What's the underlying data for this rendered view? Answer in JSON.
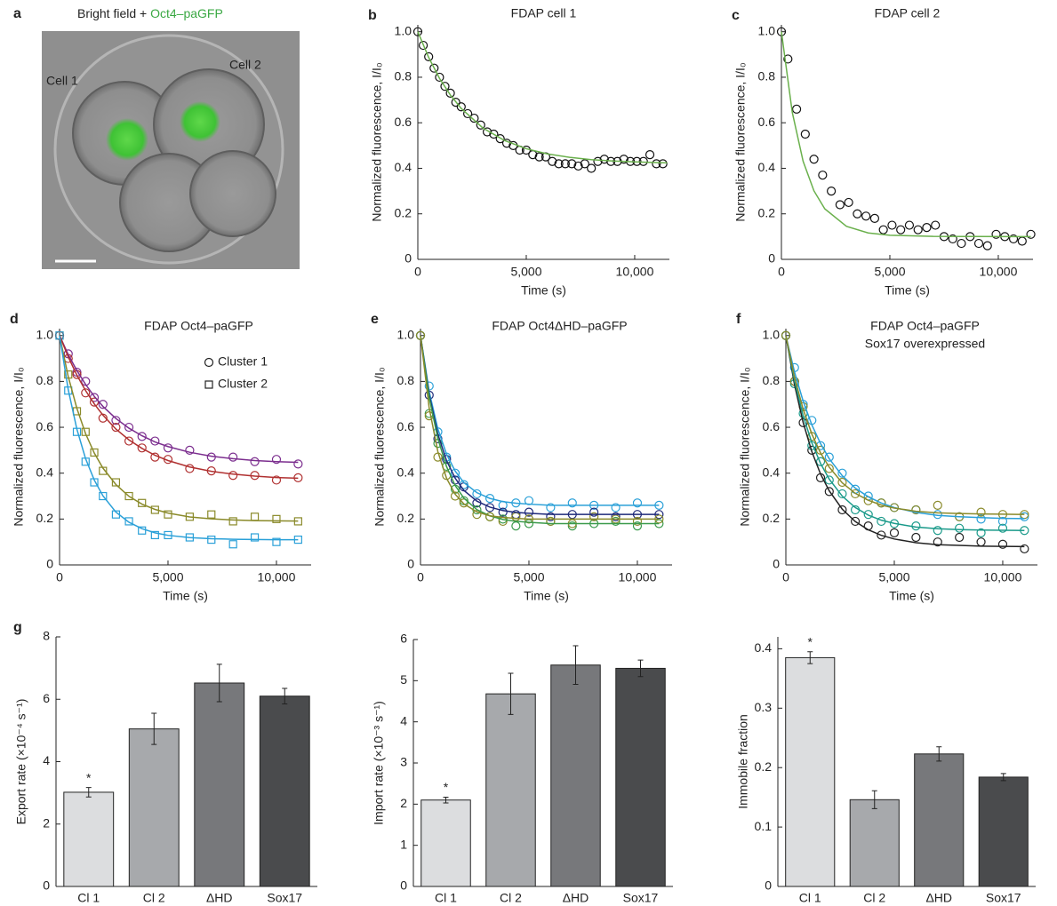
{
  "chart_data": [
    {
      "type": "image",
      "label": "a",
      "title": "Bright field + ",
      "title_highlight": "Oct4–paGFP",
      "annotations": [
        "Cell 1",
        "Cell 2"
      ]
    },
    {
      "type": "scatter",
      "label": "b",
      "title": "FDAP cell 1",
      "xlabel": "Time (s)",
      "ylabel": "Normalized fluorescence, I/I₀",
      "xlim": [
        0,
        11600
      ],
      "ylim": [
        0,
        1.03
      ],
      "xticks": [
        0,
        {
          "value": 5000,
          "label": "5,000"
        },
        {
          "value": 10000,
          "label": "10,000"
        }
      ],
      "yticks": [
        0,
        0.2,
        0.4,
        0.6,
        0.8,
        {
          "value": 1,
          "label": "1.0"
        }
      ],
      "x": [
        0,
        250,
        500,
        750,
        1000,
        1250,
        1500,
        1750,
        2000,
        2300,
        2600,
        2900,
        3200,
        3500,
        3800,
        4100,
        4400,
        4700,
        5000,
        5300,
        5600,
        5900,
        6200,
        6500,
        6800,
        7100,
        7400,
        7700,
        8000,
        8300,
        8600,
        8900,
        9200,
        9500,
        9800,
        10100,
        10400,
        10700,
        11000,
        11300
      ],
      "series": [
        {
          "marker": "circle",
          "color": "#111111",
          "values": [
            1.0,
            0.94,
            0.89,
            0.84,
            0.8,
            0.76,
            0.73,
            0.69,
            0.67,
            0.64,
            0.62,
            0.59,
            0.56,
            0.55,
            0.53,
            0.51,
            0.5,
            0.48,
            0.48,
            0.46,
            0.45,
            0.45,
            0.43,
            0.42,
            0.42,
            0.42,
            0.41,
            0.42,
            0.4,
            0.43,
            0.44,
            0.43,
            0.43,
            0.44,
            0.43,
            0.43,
            0.43,
            0.46,
            0.42,
            0.42
          ]
        }
      ],
      "fit": {
        "color": "#6ab04c",
        "x": [
          0,
          500,
          1000,
          1500,
          2000,
          3000,
          4000,
          5000,
          6000,
          7000,
          8000,
          9000,
          10000,
          11500
        ],
        "values": [
          1.0,
          0.887,
          0.795,
          0.722,
          0.663,
          0.577,
          0.522,
          0.486,
          0.463,
          0.448,
          0.438,
          0.432,
          0.428,
          0.424
        ]
      }
    },
    {
      "type": "scatter",
      "label": "c",
      "title": "FDAP cell 2",
      "xlabel": "Time (s)",
      "ylabel": "Normalized fluorescence, I/I₀",
      "xlim": [
        0,
        11600
      ],
      "ylim": [
        0,
        1.03
      ],
      "xticks": [
        0,
        {
          "value": 5000,
          "label": "5,000"
        },
        {
          "value": 10000,
          "label": "10,000"
        }
      ],
      "yticks": [
        0,
        0.2,
        0.4,
        0.6,
        0.8,
        {
          "value": 1,
          "label": "1.0"
        }
      ],
      "x": [
        0,
        300,
        700,
        1100,
        1500,
        1900,
        2300,
        2700,
        3100,
        3500,
        3900,
        4300,
        4700,
        5100,
        5500,
        5900,
        6300,
        6700,
        7100,
        7500,
        7900,
        8300,
        8700,
        9100,
        9500,
        9900,
        10300,
        10700,
        11100,
        11500
      ],
      "series": [
        {
          "marker": "circle",
          "color": "#111111",
          "values": [
            1.0,
            0.88,
            0.66,
            0.55,
            0.44,
            0.37,
            0.3,
            0.24,
            0.25,
            0.2,
            0.19,
            0.18,
            0.13,
            0.15,
            0.13,
            0.15,
            0.13,
            0.14,
            0.15,
            0.1,
            0.09,
            0.07,
            0.1,
            0.07,
            0.06,
            0.11,
            0.1,
            0.09,
            0.08,
            0.11
          ]
        }
      ],
      "fit": {
        "color": "#6ab04c",
        "x": [
          0,
          500,
          1000,
          1500,
          2000,
          3000,
          4000,
          5000,
          7000,
          11500
        ],
        "values": [
          1.0,
          0.646,
          0.431,
          0.301,
          0.222,
          0.145,
          0.116,
          0.106,
          0.101,
          0.1
        ]
      }
    },
    {
      "type": "scatter",
      "label": "d",
      "title": "FDAP Oct4–paGFP",
      "xlabel": "Time (s)",
      "ylabel": "Normalized fluorescence, I/I₀",
      "xlim": [
        0,
        11600
      ],
      "ylim": [
        0,
        1.03
      ],
      "xticks": [
        0,
        {
          "value": 5000,
          "label": "5,000"
        },
        {
          "value": 10000,
          "label": "10,000"
        }
      ],
      "yticks": [
        0,
        0.2,
        0.4,
        0.6,
        0.8,
        {
          "value": 1,
          "label": "1.0"
        }
      ],
      "legend": [
        {
          "label": "Cluster 1",
          "marker": "circle"
        },
        {
          "label": "Cluster 2",
          "marker": "square"
        }
      ],
      "x": [
        0,
        400,
        800,
        1200,
        1600,
        2000,
        2600,
        3200,
        3800,
        4400,
        5000,
        6000,
        7000,
        8000,
        9000,
        10000,
        11000
      ],
      "series": [
        {
          "marker": "circle",
          "color": "#7b2d8e",
          "values": [
            1.0,
            0.92,
            0.84,
            0.8,
            0.73,
            0.7,
            0.63,
            0.6,
            0.56,
            0.54,
            0.51,
            0.5,
            0.47,
            0.47,
            0.45,
            0.46,
            0.44
          ],
          "fit": [
            1.0,
            0.917,
            0.847,
            0.787,
            0.735,
            0.691,
            0.638,
            0.596,
            0.563,
            0.536,
            0.516,
            0.491,
            0.474,
            0.463,
            0.455,
            0.45,
            0.447
          ]
        },
        {
          "marker": "circle",
          "color": "#b03030",
          "values": [
            1.0,
            0.9,
            0.83,
            0.75,
            0.71,
            0.64,
            0.6,
            0.54,
            0.51,
            0.47,
            0.46,
            0.42,
            0.41,
            0.39,
            0.39,
            0.37,
            0.38
          ],
          "fit": [
            1.0,
            0.907,
            0.827,
            0.76,
            0.702,
            0.653,
            0.592,
            0.545,
            0.508,
            0.478,
            0.455,
            0.427,
            0.408,
            0.396,
            0.387,
            0.381,
            0.378
          ]
        },
        {
          "marker": "square",
          "color": "#8a8a2a",
          "values": [
            1.0,
            0.83,
            0.67,
            0.58,
            0.49,
            0.41,
            0.36,
            0.3,
            0.27,
            0.24,
            0.22,
            0.21,
            0.22,
            0.19,
            0.21,
            0.2,
            0.19
          ],
          "fit": [
            1.0,
            0.821,
            0.682,
            0.572,
            0.488,
            0.422,
            0.35,
            0.299,
            0.265,
            0.242,
            0.226,
            0.209,
            0.201,
            0.196,
            0.193,
            0.192,
            0.191
          ]
        },
        {
          "marker": "square",
          "color": "#2aa0d8",
          "values": [
            1.0,
            0.76,
            0.58,
            0.45,
            0.36,
            0.3,
            0.22,
            0.19,
            0.15,
            0.13,
            0.13,
            0.12,
            0.11,
            0.09,
            0.12,
            0.1,
            0.11
          ],
          "fit": [
            1.0,
            0.764,
            0.591,
            0.463,
            0.37,
            0.301,
            0.23,
            0.186,
            0.158,
            0.14,
            0.129,
            0.119,
            0.114,
            0.112,
            0.111,
            0.11,
            0.11
          ]
        }
      ]
    },
    {
      "type": "scatter",
      "label": "e",
      "title": "FDAP Oct4ΔHD–paGFP",
      "xlabel": "Time (s)",
      "ylabel": "Normalized fluorescence, I/I₀",
      "xlim": [
        0,
        11600
      ],
      "ylim": [
        0,
        1.03
      ],
      "xticks": [
        0,
        {
          "value": 5000,
          "label": "5,000"
        },
        {
          "value": 10000,
          "label": "10,000"
        }
      ],
      "yticks": [
        0,
        0.2,
        0.4,
        0.6,
        0.8,
        {
          "value": 1,
          "label": "1.0"
        }
      ],
      "x": [
        0,
        400,
        800,
        1200,
        1600,
        2000,
        2600,
        3200,
        3800,
        4400,
        5000,
        6000,
        7000,
        8000,
        9000,
        10000,
        11000
      ],
      "series": [
        {
          "marker": "circle",
          "color": "#2aa0d8",
          "values": [
            1.0,
            0.78,
            0.58,
            0.47,
            0.4,
            0.35,
            0.31,
            0.29,
            0.26,
            0.27,
            0.28,
            0.25,
            0.27,
            0.26,
            0.25,
            0.27,
            0.26
          ],
          "fit": [
            1.0,
            0.756,
            0.593,
            0.483,
            0.409,
            0.359,
            0.315,
            0.29,
            0.276,
            0.269,
            0.265,
            0.26,
            0.26,
            0.26,
            0.26,
            0.26,
            0.26
          ]
        },
        {
          "marker": "circle",
          "color": "#1f2a7a",
          "values": [
            1.0,
            0.74,
            0.55,
            0.46,
            0.37,
            0.34,
            0.27,
            0.25,
            0.23,
            0.22,
            0.23,
            0.21,
            0.22,
            0.23,
            0.21,
            0.22,
            0.22
          ],
          "fit": [
            1.0,
            0.743,
            0.57,
            0.455,
            0.378,
            0.325,
            0.278,
            0.252,
            0.237,
            0.229,
            0.225,
            0.22,
            0.22,
            0.22,
            0.22,
            0.22,
            0.22
          ]
        },
        {
          "marker": "circle",
          "color": "#3a9a4a",
          "values": [
            1.0,
            0.66,
            0.53,
            0.43,
            0.33,
            0.28,
            0.24,
            0.21,
            0.2,
            0.17,
            0.18,
            0.19,
            0.17,
            0.18,
            0.19,
            0.17,
            0.18
          ],
          "fit": [
            1.0,
            0.73,
            0.551,
            0.429,
            0.346,
            0.291,
            0.241,
            0.214,
            0.198,
            0.19,
            0.186,
            0.18,
            0.18,
            0.18,
            0.18,
            0.18,
            0.18
          ]
        },
        {
          "marker": "circle",
          "color": "#8a8a2a",
          "values": [
            1.0,
            0.65,
            0.47,
            0.39,
            0.3,
            0.27,
            0.22,
            0.21,
            0.19,
            0.21,
            0.2,
            0.19,
            0.18,
            0.21,
            0.2,
            0.19,
            0.2
          ],
          "fit": [
            1.0,
            0.685,
            0.494,
            0.378,
            0.308,
            0.266,
            0.231,
            0.214,
            0.207,
            0.203,
            0.2,
            0.2,
            0.2,
            0.2,
            0.2,
            0.2,
            0.2
          ]
        }
      ]
    },
    {
      "type": "scatter",
      "label": "f",
      "title": "FDAP Oct4–paGFP",
      "subtitle": "Sox17 overexpressed",
      "xlabel": "Time (s)",
      "ylabel": "Normalized fluorescence, I/I₀",
      "xlim": [
        0,
        11600
      ],
      "ylim": [
        0,
        1.03
      ],
      "xticks": [
        0,
        {
          "value": 5000,
          "label": "5,000"
        },
        {
          "value": 10000,
          "label": "10,000"
        }
      ],
      "yticks": [
        0,
        0.2,
        0.4,
        0.6,
        0.8,
        {
          "value": 1,
          "label": "1.0"
        }
      ],
      "x": [
        0,
        400,
        800,
        1200,
        1600,
        2000,
        2600,
        3200,
        3800,
        4400,
        5000,
        6000,
        7000,
        8000,
        9000,
        10000,
        11000
      ],
      "series": [
        {
          "marker": "circle",
          "color": "#2aa0d8",
          "values": [
            1.0,
            0.86,
            0.7,
            0.63,
            0.52,
            0.47,
            0.4,
            0.33,
            0.3,
            0.27,
            0.25,
            0.24,
            0.22,
            0.21,
            0.2,
            0.19,
            0.21
          ],
          "fit": [
            1.0,
            0.841,
            0.713,
            0.61,
            0.529,
            0.463,
            0.389,
            0.335,
            0.297,
            0.27,
            0.25,
            0.229,
            0.216,
            0.21,
            0.206,
            0.203,
            0.202
          ]
        },
        {
          "marker": "circle",
          "color": "#222222",
          "values": [
            1.0,
            0.8,
            0.62,
            0.5,
            0.38,
            0.32,
            0.24,
            0.19,
            0.17,
            0.13,
            0.14,
            0.12,
            0.1,
            0.12,
            0.1,
            0.09,
            0.07
          ],
          "fit": [
            1.0,
            0.785,
            0.62,
            0.493,
            0.396,
            0.323,
            0.243,
            0.189,
            0.153,
            0.129,
            0.113,
            0.097,
            0.088,
            0.085,
            0.082,
            0.081,
            0.08
          ]
        },
        {
          "marker": "circle",
          "color": "#1a9a8a",
          "values": [
            1.0,
            0.79,
            0.66,
            0.52,
            0.45,
            0.37,
            0.31,
            0.24,
            0.22,
            0.19,
            0.18,
            0.17,
            0.15,
            0.16,
            0.14,
            0.16,
            0.15
          ],
          "fit": [
            1.0,
            0.801,
            0.649,
            0.532,
            0.442,
            0.374,
            0.3,
            0.25,
            0.217,
            0.195,
            0.181,
            0.165,
            0.158,
            0.154,
            0.152,
            0.151,
            0.15
          ]
        },
        {
          "marker": "circle",
          "color": "#8a8a2a",
          "values": [
            1.0,
            0.8,
            0.69,
            0.56,
            0.5,
            0.42,
            0.36,
            0.31,
            0.28,
            0.27,
            0.25,
            0.24,
            0.26,
            0.21,
            0.23,
            0.22,
            0.22
          ],
          "fit": [
            1.0,
            0.817,
            0.678,
            0.57,
            0.488,
            0.426,
            0.358,
            0.312,
            0.282,
            0.261,
            0.248,
            0.234,
            0.227,
            0.224,
            0.222,
            0.221,
            0.22
          ]
        }
      ]
    },
    {
      "type": "bar",
      "label": "g",
      "ylabel": "Export rate (×10⁻⁴ s⁻¹)",
      "ylim": [
        0,
        8
      ],
      "yticks": [
        0,
        2,
        4,
        6,
        8
      ],
      "categories": [
        "Cl 1",
        "Cl 2",
        "ΔHD",
        "Sox17"
      ],
      "values": [
        3.02,
        5.05,
        6.52,
        6.1
      ],
      "errors": [
        0.15,
        0.5,
        0.6,
        0.25
      ],
      "colors": [
        "#dcdddf",
        "#a7a9ac",
        "#77787b",
        "#4a4b4d"
      ],
      "significance": [
        "*",
        null,
        null,
        null
      ]
    },
    {
      "type": "bar",
      "ylabel": "Import rate (×10⁻³ s⁻¹)",
      "ylim": [
        0,
        6
      ],
      "yticks": [
        0,
        1,
        2,
        3,
        4,
        5,
        6
      ],
      "categories": [
        "Cl 1",
        "Cl 2",
        "ΔHD",
        "Sox17"
      ],
      "values": [
        2.1,
        4.68,
        5.38,
        5.3
      ],
      "errors": [
        0.07,
        0.5,
        0.47,
        0.2
      ],
      "colors": [
        "#dcdddf",
        "#a7a9ac",
        "#77787b",
        "#4a4b4d"
      ],
      "significance": [
        "*",
        null,
        null,
        null
      ]
    },
    {
      "type": "bar",
      "ylabel": "Immobile fraction",
      "ylim": [
        0,
        0.42
      ],
      "yticks": [
        0,
        0.1,
        0.2,
        0.3,
        0.4
      ],
      "categories": [
        "Cl 1",
        "Cl 2",
        "ΔHD",
        "Sox17"
      ],
      "values": [
        0.385,
        0.146,
        0.223,
        0.184
      ],
      "errors": [
        0.01,
        0.015,
        0.012,
        0.006
      ],
      "colors": [
        "#dcdddf",
        "#a7a9ac",
        "#77787b",
        "#4a4b4d"
      ],
      "significance": [
        "*",
        null,
        null,
        null
      ]
    }
  ]
}
